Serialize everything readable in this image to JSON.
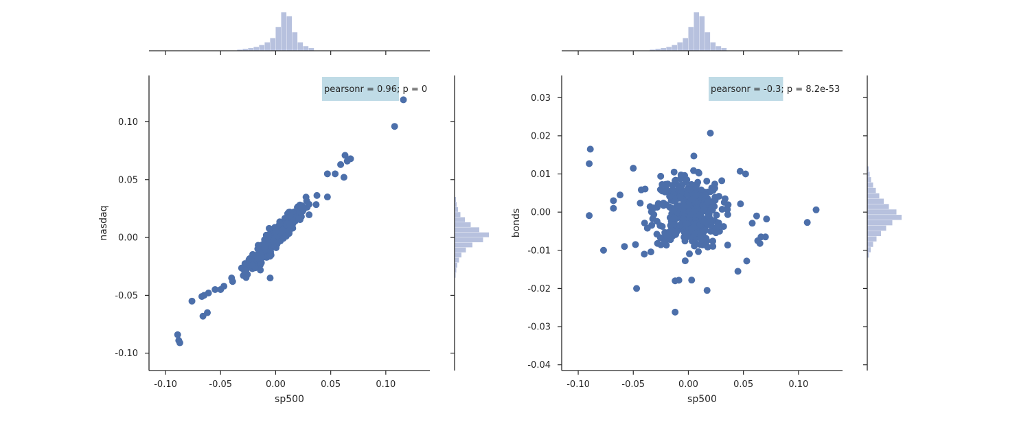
{
  "colors": {
    "point": "#4c6faa",
    "hist": "#b7c1de",
    "axis": "#262626",
    "annotation_box": "#bfdbe6"
  },
  "chart_data": [
    {
      "type": "scatter",
      "xlabel": "sp500",
      "ylabel": "nasdaq",
      "xlim": [
        -0.115,
        0.14
      ],
      "ylim": [
        -0.115,
        0.14
      ],
      "xticks": [
        "-0.10",
        "-0.05",
        "0.00",
        "0.05",
        "0.10"
      ],
      "yticks": [
        "-0.10",
        "-0.05",
        "0.00",
        "0.05",
        "0.10"
      ],
      "annotation": {
        "boxed": "pearsonr = 0.96",
        "rest": "; p = 0"
      },
      "outliers": [
        [
          0.116,
          0.119
        ],
        [
          0.108,
          0.096
        ],
        [
          0.063,
          0.071
        ],
        [
          0.068,
          0.068
        ],
        [
          0.065,
          0.066
        ],
        [
          0.059,
          0.063
        ],
        [
          0.054,
          0.055
        ],
        [
          0.047,
          0.055
        ],
        [
          0.062,
          0.052
        ],
        [
          0.047,
          0.035
        ],
        [
          -0.055,
          -0.045
        ],
        [
          -0.05,
          -0.045
        ],
        [
          -0.065,
          -0.05
        ],
        [
          -0.061,
          -0.048
        ],
        [
          -0.076,
          -0.055
        ],
        [
          -0.067,
          -0.051
        ],
        [
          -0.062,
          -0.065
        ],
        [
          -0.066,
          -0.068
        ],
        [
          -0.089,
          -0.084
        ],
        [
          -0.088,
          -0.089
        ],
        [
          -0.087,
          -0.091
        ],
        [
          -0.005,
          -0.035
        ],
        [
          -0.04,
          -0.035
        ]
      ],
      "cluster": {
        "kind": "correlated",
        "n": 380,
        "x_sd": 0.0135,
        "slope": 1.0,
        "noise_sd": 0.0042
      },
      "top_hist": {
        "edges": [
          -0.035,
          0.035
        ],
        "heights": [
          0.03,
          0.05,
          0.07,
          0.1,
          0.15,
          0.22,
          0.33,
          0.62,
          1.0,
          0.9,
          0.48,
          0.22,
          0.12,
          0.07
        ]
      },
      "right_hist": {
        "edges": [
          -0.035,
          0.035
        ],
        "heights": [
          0.03,
          0.05,
          0.08,
          0.13,
          0.2,
          0.33,
          0.52,
          0.83,
          1.0,
          0.72,
          0.47,
          0.3,
          0.17,
          0.1,
          0.06,
          0.04
        ]
      }
    },
    {
      "type": "scatter",
      "xlabel": "sp500",
      "ylabel": "bonds",
      "xlim": [
        -0.115,
        0.14
      ],
      "ylim": [
        -0.0415,
        0.0358
      ],
      "xticks": [
        "-0.10",
        "-0.05",
        "0.00",
        "0.05",
        "0.10"
      ],
      "yticks": [
        "-0.04",
        "-0.03",
        "-0.02",
        "-0.01",
        "0.00",
        "0.01",
        "0.02",
        "0.03"
      ],
      "annotation": {
        "boxed": "pearsonr = -0.3",
        "rest": "; p = 8.2e-53"
      },
      "outliers": [
        [
          -0.089,
          0.0165
        ],
        [
          -0.09,
          0.0127
        ],
        [
          -0.09,
          -0.0009
        ],
        [
          -0.077,
          -0.01
        ],
        [
          -0.068,
          0.003
        ],
        [
          -0.068,
          0.001
        ],
        [
          -0.062,
          0.0045
        ],
        [
          -0.058,
          -0.009
        ],
        [
          -0.05,
          0.0115
        ],
        [
          -0.048,
          -0.0085
        ],
        [
          -0.047,
          -0.02
        ],
        [
          -0.04,
          -0.011
        ],
        [
          -0.028,
          -0.0082
        ],
        [
          -0.012,
          -0.018
        ],
        [
          -0.012,
          -0.0262
        ],
        [
          0.003,
          -0.0178
        ],
        [
          0.017,
          -0.0205
        ],
        [
          0.02,
          0.0207
        ],
        [
          0.045,
          -0.0155
        ],
        [
          0.047,
          0.0107
        ],
        [
          0.052,
          0.01
        ],
        [
          0.053,
          -0.0128
        ],
        [
          0.063,
          -0.0075
        ],
        [
          0.065,
          -0.0082
        ],
        [
          0.066,
          -0.0065
        ],
        [
          0.07,
          -0.0065
        ],
        [
          0.071,
          -0.0018
        ],
        [
          0.108,
          -0.0027
        ],
        [
          0.116,
          0.0006
        ],
        [
          0.058,
          -0.0029
        ],
        [
          0.062,
          -0.001
        ],
        [
          0.005,
          0.0147
        ]
      ],
      "cluster": {
        "kind": "blob",
        "n": 420,
        "x_sd": 0.015,
        "slope": -0.03,
        "noise_sd": 0.0045
      },
      "top_hist": {
        "edges": [
          -0.035,
          0.035
        ],
        "heights": [
          0.03,
          0.05,
          0.07,
          0.1,
          0.15,
          0.22,
          0.33,
          0.62,
          1.0,
          0.9,
          0.48,
          0.22,
          0.12,
          0.07
        ]
      },
      "right_hist": {
        "edges": [
          -0.012,
          0.012
        ],
        "heights": [
          0.05,
          0.1,
          0.17,
          0.27,
          0.4,
          0.55,
          0.73,
          1.0,
          0.85,
          0.63,
          0.48,
          0.35,
          0.25,
          0.17,
          0.11,
          0.07,
          0.04
        ]
      }
    }
  ]
}
